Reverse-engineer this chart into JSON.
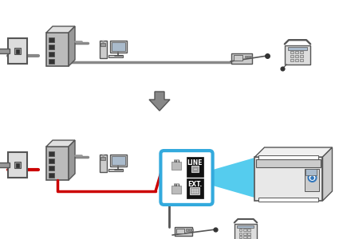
{
  "bg_color": "#ffffff",
  "gray_line": "#888888",
  "red_line": "#cc0000",
  "dark_gray": "#555555",
  "med_gray": "#999999",
  "light_gray": "#cccccc",
  "blue_border": "#33aadd",
  "blue_fill": "#55ccee",
  "black": "#111111",
  "white": "#ffffff",
  "arrow_fill": "#888888",
  "wall_fill": "#dddddd",
  "modem_front": "#bbbbbb",
  "modem_top": "#e0e0e0",
  "modem_side": "#999999",
  "port_dark": "#333333",
  "computer_body": "#cccccc",
  "computer_screen": "#aabbcc",
  "printer_body": "#e8e8e8",
  "printer_top": "#f0f0f0",
  "printer_side": "#cccccc",
  "phone_body": "#dddddd",
  "answerer_body": "#cccccc",
  "connector_body": "#bbbbbb"
}
